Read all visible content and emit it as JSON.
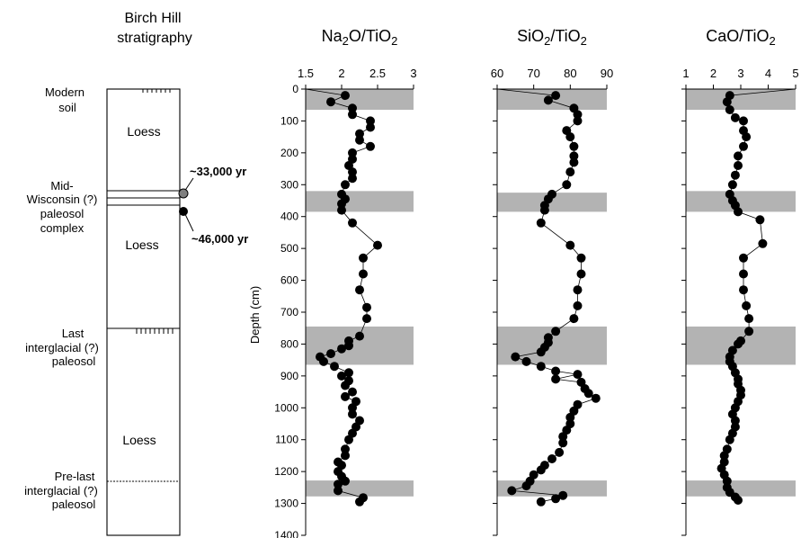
{
  "colors": {
    "ink": "#000000",
    "band": "#b3b3b3",
    "marker": "#000000",
    "marker_grey": "#7f7f7f"
  },
  "strat": {
    "title_line1": "Birch Hill",
    "title_line2": "stratigraphy",
    "labels": {
      "modern_1": "Modern",
      "modern_2": "soil",
      "loess_a": "Loess",
      "mid_1": "Mid-",
      "mid_2": "Wisconsin (?)",
      "mid_3": "paleosol",
      "mid_4": "complex",
      "loess_b": "Loess",
      "last_1": "Last",
      "last_2": "interglacial (?)",
      "last_3": "paleosol",
      "loess_c": "Loess",
      "pre_1": "Pre-last",
      "pre_2": "interglacial (?)",
      "pre_3": "paleosol"
    },
    "dates": [
      {
        "label": "~33,000 yr",
        "depth": 325,
        "marker": "grey"
      },
      {
        "label": "~46,000 yr",
        "depth": 385,
        "marker": "black"
      }
    ]
  },
  "chart_data": [
    {
      "type": "scatter",
      "title_parts": [
        "Na",
        "2",
        "O/TiO",
        "2"
      ],
      "xlim": [
        1.5,
        3
      ],
      "xticks": [
        1.5,
        2,
        2.5,
        3
      ],
      "xtick_labels": [
        "1.5",
        "2",
        "2.5",
        "3"
      ],
      "ylim": [
        0,
        1400
      ],
      "yticks": [
        0,
        100,
        200,
        300,
        400,
        500,
        600,
        700,
        800,
        900,
        1000,
        1100,
        1200,
        1300,
        1400
      ],
      "ylabel": "Depth (cm)",
      "bands": [
        [
          0,
          65
        ],
        [
          320,
          385
        ],
        [
          745,
          865
        ],
        [
          1228,
          1278
        ]
      ],
      "connected": true,
      "points": [
        [
          1.5,
          0
        ],
        [
          2.05,
          20
        ],
        [
          1.85,
          40
        ],
        [
          2.15,
          60
        ],
        [
          2.15,
          80
        ],
        [
          2.4,
          100
        ],
        [
          2.4,
          120
        ],
        [
          2.25,
          140
        ],
        [
          2.25,
          160
        ],
        [
          2.4,
          180
        ],
        [
          2.15,
          200
        ],
        [
          2.15,
          220
        ],
        [
          2.1,
          240
        ],
        [
          2.15,
          260
        ],
        [
          2.15,
          280
        ],
        [
          2.05,
          300
        ],
        [
          2.0,
          330
        ],
        [
          2.05,
          345
        ],
        [
          2.0,
          360
        ],
        [
          2.0,
          380
        ],
        [
          2.15,
          420
        ],
        [
          2.5,
          490
        ],
        [
          2.3,
          530
        ],
        [
          2.3,
          580
        ],
        [
          2.25,
          630
        ],
        [
          2.35,
          685
        ],
        [
          2.35,
          720
        ],
        [
          2.25,
          775
        ],
        [
          2.1,
          790
        ],
        [
          2.1,
          805
        ],
        [
          2.0,
          815
        ],
        [
          1.85,
          830
        ],
        [
          1.7,
          840
        ],
        [
          1.75,
          855
        ],
        [
          1.9,
          870
        ],
        [
          2.1,
          890
        ],
        [
          2.0,
          900
        ],
        [
          2.1,
          915
        ],
        [
          2.05,
          930
        ],
        [
          2.15,
          950
        ],
        [
          2.05,
          965
        ],
        [
          2.2,
          980
        ],
        [
          2.15,
          1000
        ],
        [
          2.15,
          1020
        ],
        [
          2.25,
          1040
        ],
        [
          2.2,
          1060
        ],
        [
          2.15,
          1080
        ],
        [
          2.1,
          1100
        ],
        [
          2.05,
          1130
        ],
        [
          2.05,
          1150
        ],
        [
          1.95,
          1170
        ],
        [
          2.0,
          1180
        ],
        [
          1.95,
          1200
        ],
        [
          2.0,
          1215
        ],
        [
          2.05,
          1230
        ],
        [
          1.95,
          1240
        ],
        [
          1.95,
          1260
        ],
        [
          2.3,
          1282
        ],
        [
          2.25,
          1295
        ]
      ]
    },
    {
      "type": "scatter",
      "title_parts": [
        "SiO",
        "2",
        "/TiO",
        "2"
      ],
      "xlim": [
        60,
        90
      ],
      "xticks": [
        60,
        70,
        80,
        90
      ],
      "xtick_labels": [
        "60",
        "70",
        "80",
        "90"
      ],
      "ylim": [
        0,
        1400
      ],
      "yticks": [
        0,
        100,
        200,
        300,
        400,
        500,
        600,
        700,
        800,
        900,
        1000,
        1100,
        1200,
        1300,
        1400
      ],
      "bands": [
        [
          0,
          65
        ],
        [
          325,
          385
        ],
        [
          745,
          865
        ],
        [
          1228,
          1278
        ]
      ],
      "connected": true,
      "points": [
        [
          60,
          0
        ],
        [
          76,
          20
        ],
        [
          74,
          35
        ],
        [
          81,
          60
        ],
        [
          82,
          80
        ],
        [
          82,
          100
        ],
        [
          79,
          130
        ],
        [
          80,
          150
        ],
        [
          81,
          180
        ],
        [
          81,
          210
        ],
        [
          81,
          230
        ],
        [
          80,
          260
        ],
        [
          79,
          300
        ],
        [
          75,
          330
        ],
        [
          74,
          345
        ],
        [
          73,
          365
        ],
        [
          73,
          380
        ],
        [
          72,
          420
        ],
        [
          80,
          490
        ],
        [
          83,
          530
        ],
        [
          83,
          580
        ],
        [
          82,
          630
        ],
        [
          82,
          680
        ],
        [
          81,
          720
        ],
        [
          76,
          760
        ],
        [
          74,
          780
        ],
        [
          74,
          795
        ],
        [
          73,
          810
        ],
        [
          72,
          825
        ],
        [
          65,
          840
        ],
        [
          68,
          855
        ],
        [
          72,
          870
        ],
        [
          76,
          885
        ],
        [
          82,
          895
        ],
        [
          76,
          910
        ],
        [
          83,
          920
        ],
        [
          84,
          940
        ],
        [
          85,
          955
        ],
        [
          87,
          970
        ],
        [
          82,
          990
        ],
        [
          81,
          1010
        ],
        [
          80,
          1030
        ],
        [
          80,
          1050
        ],
        [
          79,
          1070
        ],
        [
          78,
          1090
        ],
        [
          78,
          1110
        ],
        [
          77,
          1140
        ],
        [
          75,
          1160
        ],
        [
          73,
          1180
        ],
        [
          72,
          1195
        ],
        [
          70,
          1210
        ],
        [
          69,
          1230
        ],
        [
          68,
          1245
        ],
        [
          64,
          1260
        ],
        [
          78,
          1275
        ],
        [
          76,
          1285
        ],
        [
          72,
          1295
        ]
      ]
    },
    {
      "type": "scatter",
      "title_parts": [
        "CaO/TiO",
        "2"
      ],
      "xlim": [
        1,
        5
      ],
      "xticks": [
        1,
        2,
        3,
        4,
        5
      ],
      "xtick_labels": [
        "1",
        "2",
        "3",
        "4",
        "5"
      ],
      "ylim": [
        0,
        1400
      ],
      "yticks": [
        0,
        100,
        200,
        300,
        400,
        500,
        600,
        700,
        800,
        900,
        1000,
        1100,
        1200,
        1300,
        1400
      ],
      "bands": [
        [
          0,
          65
        ],
        [
          320,
          385
        ],
        [
          745,
          865
        ],
        [
          1228,
          1278
        ]
      ],
      "connected": true,
      "points": [
        [
          5,
          0
        ],
        [
          2.6,
          20
        ],
        [
          2.5,
          40
        ],
        [
          2.6,
          65
        ],
        [
          2.8,
          90
        ],
        [
          3.1,
          100
        ],
        [
          3.1,
          130
        ],
        [
          3.2,
          150
        ],
        [
          3.1,
          180
        ],
        [
          2.9,
          210
        ],
        [
          2.9,
          240
        ],
        [
          2.8,
          270
        ],
        [
          2.7,
          300
        ],
        [
          2.6,
          330
        ],
        [
          2.7,
          350
        ],
        [
          2.8,
          365
        ],
        [
          2.9,
          385
        ],
        [
          3.7,
          410
        ],
        [
          3.8,
          485
        ],
        [
          3.1,
          530
        ],
        [
          3.1,
          580
        ],
        [
          3.1,
          630
        ],
        [
          3.2,
          680
        ],
        [
          3.3,
          720
        ],
        [
          3.3,
          760
        ],
        [
          3.0,
          790
        ],
        [
          2.9,
          800
        ],
        [
          2.7,
          820
        ],
        [
          2.6,
          840
        ],
        [
          2.6,
          855
        ],
        [
          2.7,
          870
        ],
        [
          2.8,
          890
        ],
        [
          2.9,
          910
        ],
        [
          2.9,
          925
        ],
        [
          3.0,
          945
        ],
        [
          3.0,
          960
        ],
        [
          2.9,
          980
        ],
        [
          2.8,
          1000
        ],
        [
          2.7,
          1020
        ],
        [
          2.8,
          1040
        ],
        [
          2.8,
          1060
        ],
        [
          2.7,
          1080
        ],
        [
          2.6,
          1100
        ],
        [
          2.5,
          1130
        ],
        [
          2.4,
          1150
        ],
        [
          2.4,
          1170
        ],
        [
          2.3,
          1190
        ],
        [
          2.4,
          1210
        ],
        [
          2.5,
          1230
        ],
        [
          2.5,
          1250
        ],
        [
          2.6,
          1265
        ],
        [
          2.8,
          1280
        ],
        [
          2.9,
          1290
        ]
      ]
    }
  ]
}
